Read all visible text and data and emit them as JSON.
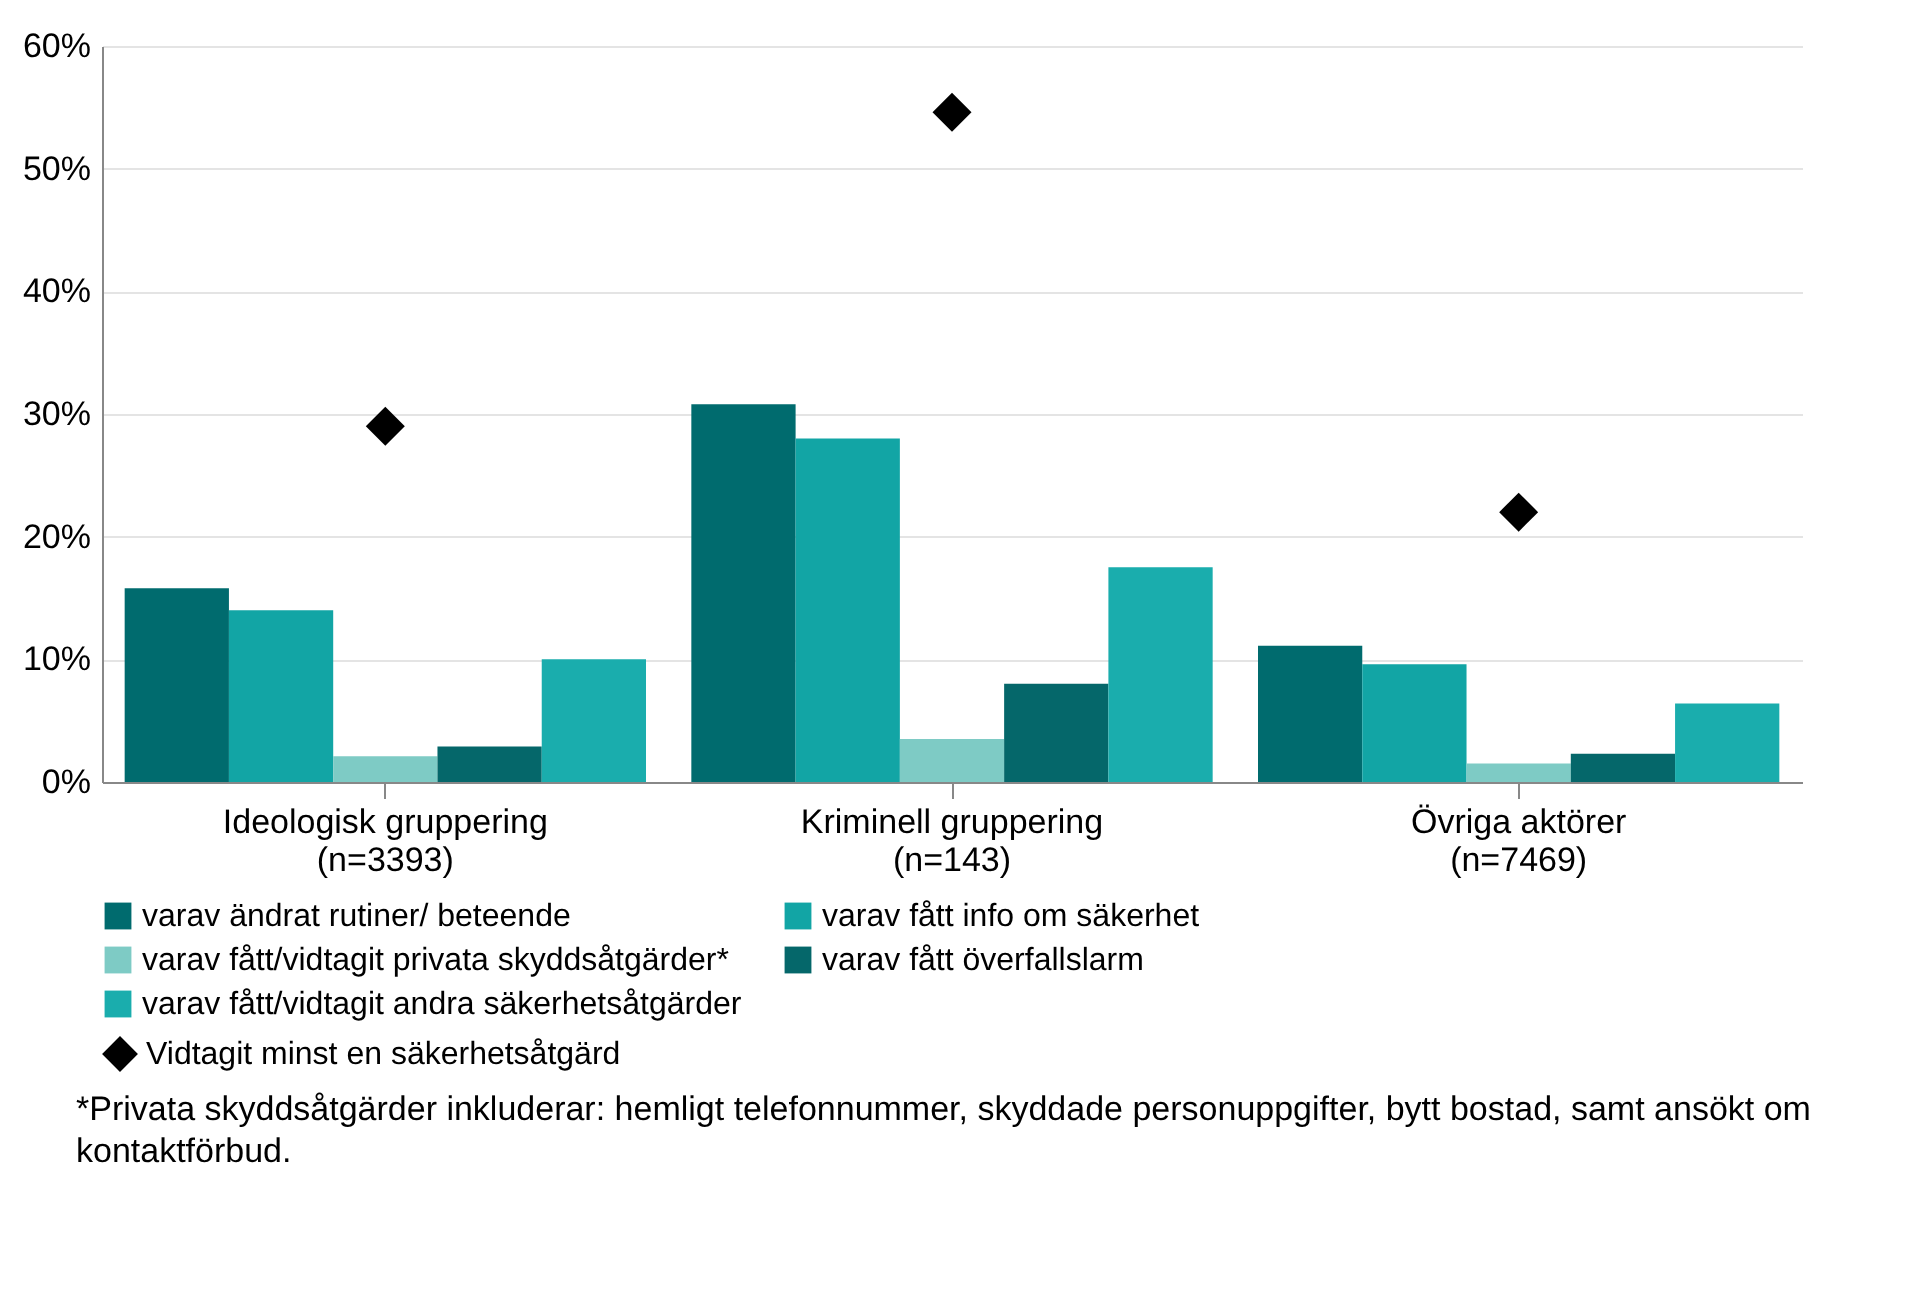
{
  "chart_data": {
    "type": "bar",
    "categories": [
      "Ideologisk gruppering (n=3393)",
      "Kriminell gruppering (n=143)",
      "Övriga aktörer (n=7469)"
    ],
    "series": [
      {
        "name": "Vidtagit minst en säkerhetsåtgärd",
        "type": "scatter",
        "marker": "diamond",
        "color": "#000000",
        "x": [
          "Ideologisk gruppering (n=3393)",
          "Kriminell gruppering (n=143)",
          "Övriga aktörer (n=7469)"
        ],
        "values": [
          29.0,
          54.6,
          22.0
        ]
      },
      {
        "name": "varav ändrat rutiner/ beteende",
        "color": "#006b6e",
        "values": [
          15.8,
          30.8,
          11.1
        ]
      },
      {
        "name": "varav fått info om säkerhet",
        "color": "#12a5a5",
        "values": [
          14.0,
          28.0,
          9.6
        ]
      },
      {
        "name": "varav fått/vidtagit privata skyddsåtgärder*",
        "color": "#7ecbc5",
        "values": [
          2.1,
          3.5,
          1.5
        ]
      },
      {
        "name": "varav fått överfallslarm",
        "color": "#05676a",
        "values": [
          2.9,
          8.0,
          2.3
        ]
      },
      {
        "name": "varav fått/vidtagit andra säkerhetsåtgärder",
        "color": "#1aadad",
        "values": [
          10.0,
          17.5,
          6.4
        ]
      }
    ],
    "ylim": [
      0,
      60
    ],
    "yticks": [
      {
        "value": 0,
        "label": "0%"
      },
      {
        "value": 10,
        "label": "10%"
      },
      {
        "value": 20,
        "label": "20%"
      },
      {
        "value": 30,
        "label": "30%"
      },
      {
        "value": 40,
        "label": "40%"
      },
      {
        "value": 50,
        "label": "50%"
      },
      {
        "value": 60,
        "label": "60%"
      }
    ],
    "grid": "y",
    "legend": "bottom",
    "annotations": [
      "*Privata skyddsåtgärder inkluderar: hemligt telefonnummer, skyddade personuppgifter, bytt bostad, samt ansökt om kontaktförbud."
    ]
  }
}
